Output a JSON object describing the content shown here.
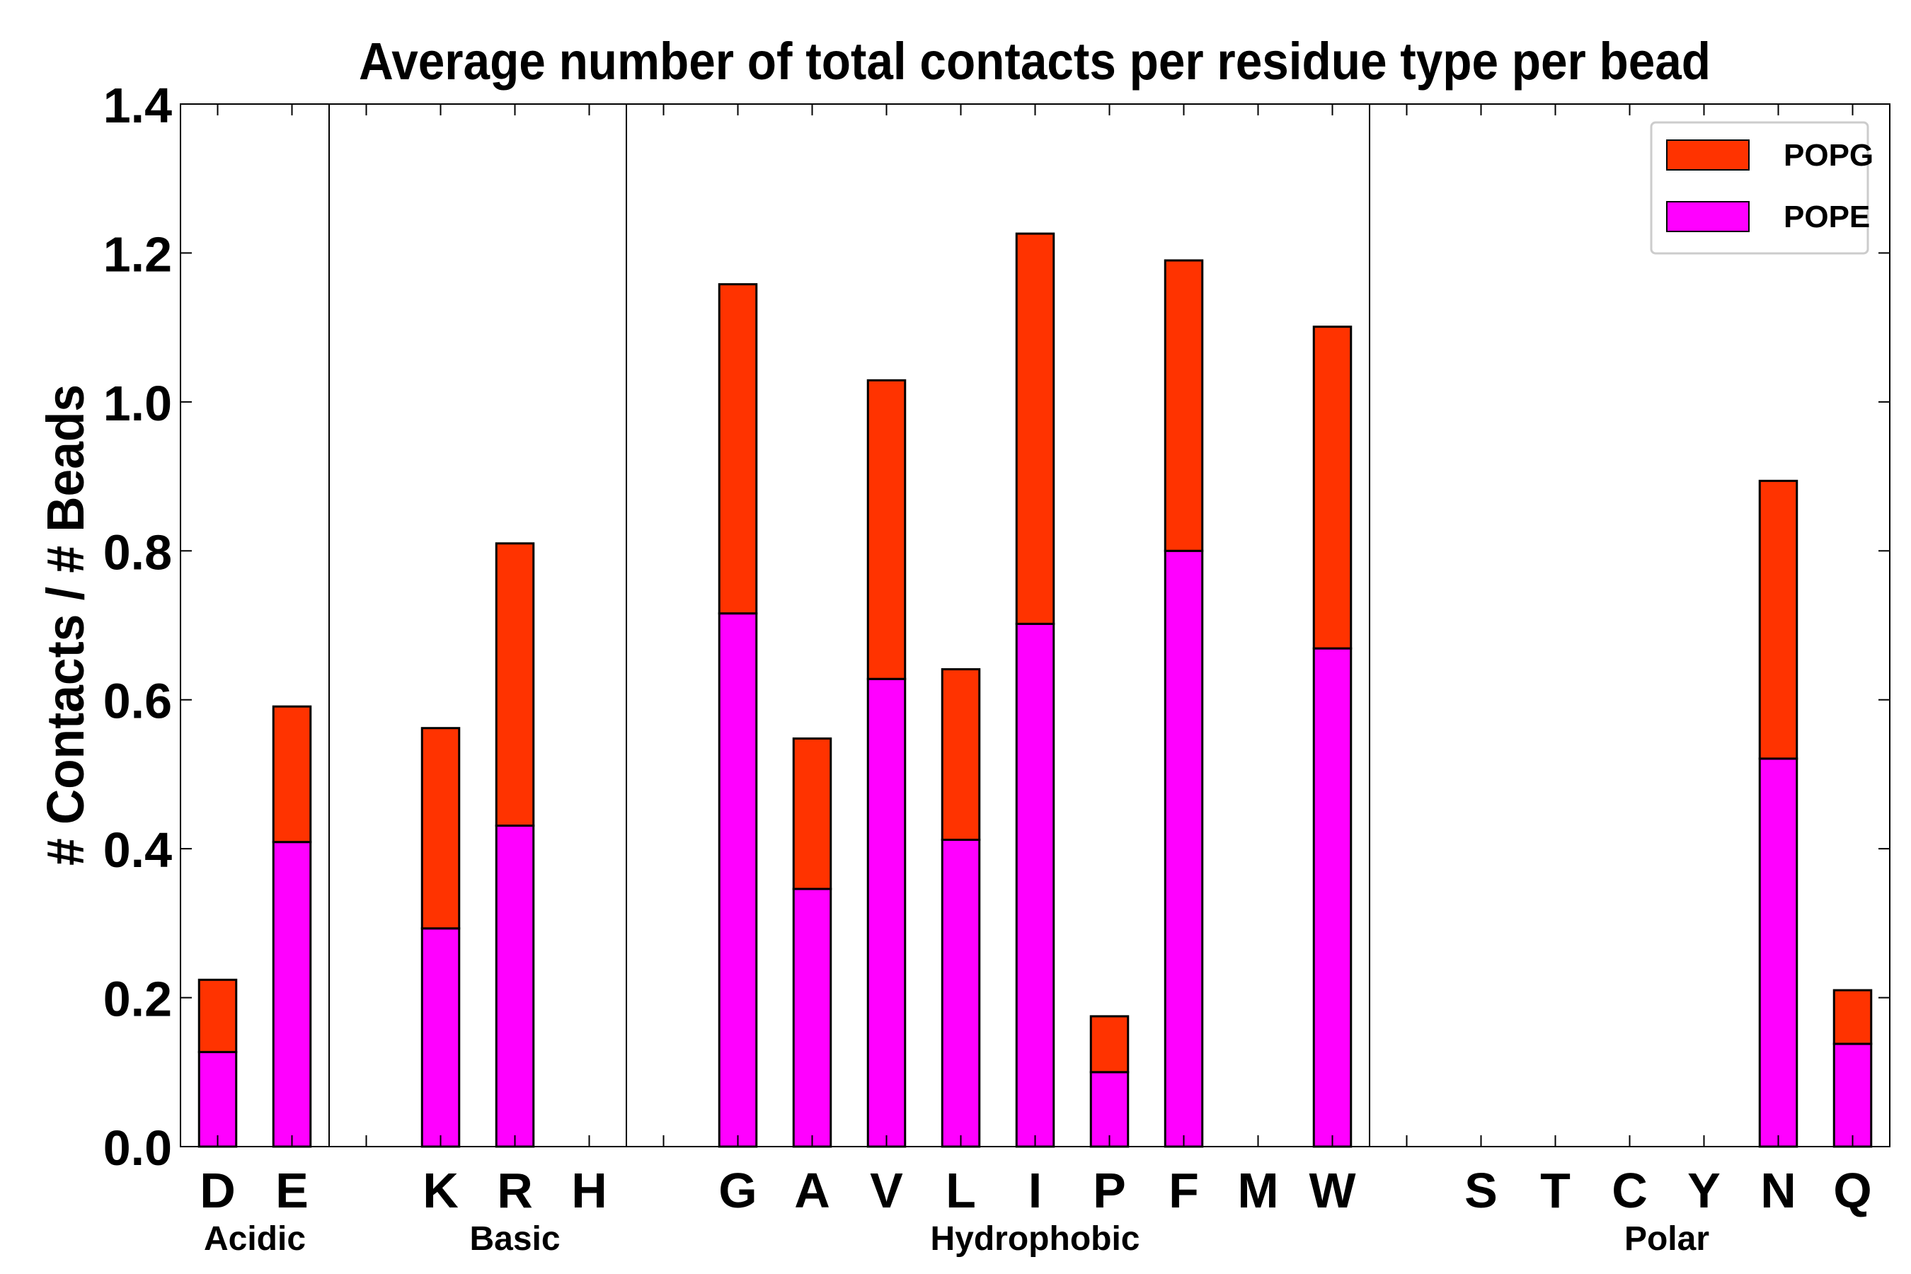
{
  "chart_data": {
    "type": "bar",
    "stacked": true,
    "title": "Average number of total contacts per residue type per bead",
    "xlabel": "",
    "ylabel": "# Contacts / # Beads",
    "ylim": [
      0,
      1.4
    ],
    "yticks": [
      "0.0",
      "0.2",
      "0.4",
      "0.6",
      "0.8",
      "1.0",
      "1.2",
      "1.4"
    ],
    "slots": [
      "D",
      "E",
      "",
      "K",
      "R",
      "H",
      "",
      "G",
      "A",
      "V",
      "L",
      "I",
      "P",
      "F",
      "M",
      "W",
      "",
      "S",
      "T",
      "C",
      "Y",
      "N",
      "Q"
    ],
    "series": [
      {
        "name": "POPE",
        "color": "#ff00ff",
        "values": [
          0.127,
          0.409,
          0,
          0.293,
          0.431,
          0,
          0,
          0.716,
          0.346,
          0.628,
          0.412,
          0.702,
          0.1,
          0.8,
          0,
          0.669,
          0,
          0,
          0,
          0,
          0,
          0.521,
          0.138
        ]
      },
      {
        "name": "POPG",
        "color": "#ff3300",
        "values": [
          0.097,
          0.182,
          0,
          0.269,
          0.379,
          0,
          0,
          0.442,
          0.202,
          0.401,
          0.229,
          0.524,
          0.075,
          0.39,
          0,
          0.432,
          0,
          0,
          0,
          0,
          0,
          0.373,
          0.072
        ]
      }
    ],
    "groups": [
      {
        "label": "Acidic",
        "start": 0,
        "end": 1
      },
      {
        "label": "Basic",
        "start": 3,
        "end": 5
      },
      {
        "label": "Hydrophobic",
        "start": 7,
        "end": 15
      },
      {
        "label": "Polar",
        "start": 17,
        "end": 22
      }
    ],
    "separators_after_slot": [
      2,
      6,
      16
    ],
    "legend": {
      "position": "top-right",
      "entries": [
        {
          "label": "POPG",
          "color": "#ff3300"
        },
        {
          "label": "POPE",
          "color": "#ff00ff"
        }
      ]
    },
    "grid": false
  }
}
